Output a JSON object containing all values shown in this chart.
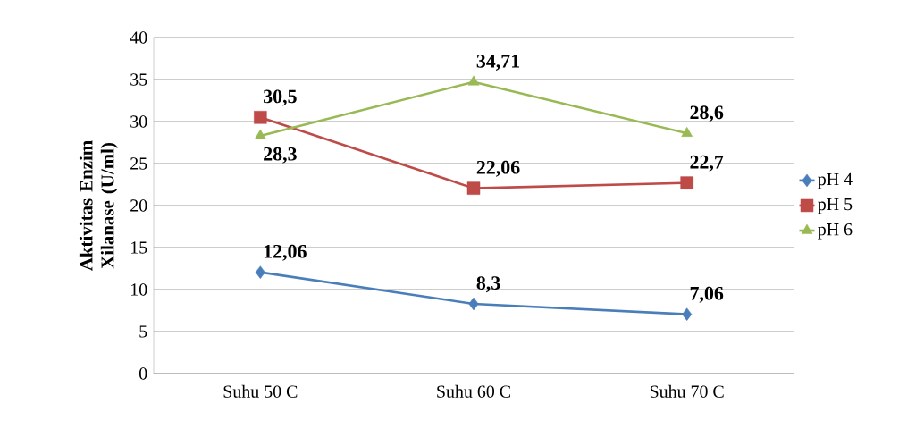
{
  "chart_data": {
    "type": "line",
    "ylabel": "Aktivitas Enzim Xilanase (U/ml)",
    "categories": [
      "Suhu 50 C",
      "Suhu 60 C",
      "Suhu 70 C"
    ],
    "series": [
      {
        "name": "pH 4",
        "color": "#4a7ebb",
        "marker": "diamond",
        "values": [
          12.06,
          8.3,
          7.06
        ],
        "value_labels": [
          "12,06",
          "8,3",
          "7,06"
        ]
      },
      {
        "name": "pH 5",
        "color": "#be4b48",
        "marker": "square",
        "values": [
          30.5,
          22.06,
          22.7
        ],
        "value_labels": [
          "30,5",
          "22,06",
          "22,7"
        ]
      },
      {
        "name": "pH 6",
        "color": "#98b954",
        "marker": "triangle",
        "values": [
          28.3,
          34.71,
          28.6
        ],
        "value_labels": [
          "28,3",
          "34,71",
          "28,6"
        ]
      }
    ],
    "ylim": [
      0,
      40
    ],
    "yticks": [
      0,
      5,
      10,
      15,
      20,
      25,
      30,
      35,
      40
    ],
    "grid": "y",
    "legend": "right",
    "line_style": "solid"
  }
}
